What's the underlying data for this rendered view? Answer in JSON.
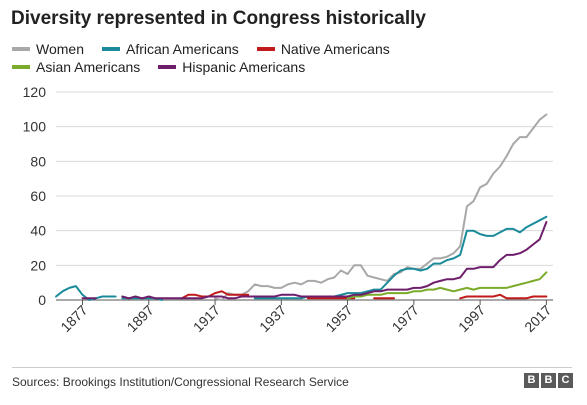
{
  "chart_data": {
    "type": "line",
    "title": "Diversity represented in Congress historically",
    "xlabel": "",
    "ylabel": "",
    "xlim": [
      1869,
      2019
    ],
    "ylim": [
      0,
      120
    ],
    "y_ticks": [
      0,
      20,
      40,
      60,
      80,
      100,
      120
    ],
    "x_ticks": [
      1877,
      1897,
      1917,
      1937,
      1957,
      1977,
      1997,
      2017
    ],
    "grid": "horizontal",
    "legend_position": "top-left",
    "series": [
      {
        "name": "Women",
        "color": "#a8a8a8",
        "segments": [
          {
            "x": [
              1917,
              1919,
              1921,
              1923,
              1925,
              1927,
              1929,
              1931,
              1933,
              1935,
              1937,
              1939,
              1941,
              1943,
              1945,
              1947,
              1949,
              1951,
              1953,
              1955,
              1957,
              1959,
              1961,
              1963,
              1965,
              1967,
              1969,
              1971,
              1973,
              1975,
              1977,
              1979,
              1981,
              1983,
              1985,
              1987,
              1989,
              1991,
              1993,
              1995,
              1997,
              1999,
              2001,
              2003,
              2005,
              2007,
              2009,
              2011,
              2013,
              2015,
              2017
            ],
            "y": [
              1,
              0,
              4,
              3,
              3,
              5,
              9,
              8,
              8,
              7,
              7,
              9,
              10,
              9,
              11,
              11,
              10,
              12,
              13,
              17,
              15,
              20,
              20,
              14,
              13,
              12,
              11,
              15,
              16,
              19,
              18,
              18,
              21,
              24,
              24,
              25,
              27,
              31,
              54,
              57,
              65,
              67,
              73,
              77,
              83,
              90,
              94,
              94,
              99,
              104,
              107
            ]
          }
        ]
      },
      {
        "name": "African Americans",
        "color": "#1b8b9b",
        "segments": [
          {
            "x": [
              1869,
              1871,
              1873,
              1875,
              1877,
              1879,
              1881,
              1883,
              1885,
              1887
            ],
            "y": [
              2,
              5,
              7,
              8,
              3,
              0,
              1,
              2,
              2,
              2
            ]
          },
          {
            "x": [
              1889,
              1891,
              1893,
              1895,
              1897,
              1899,
              1901
            ],
            "y": [
              1,
              1,
              1,
              1,
              1,
              1,
              0
            ]
          },
          {
            "x": [
              1929,
              1931,
              1933,
              1935,
              1937,
              1939,
              1941,
              1943,
              1945,
              1947,
              1949,
              1951,
              1953,
              1955,
              1957,
              1959,
              1961,
              1963,
              1965,
              1967,
              1969,
              1971,
              1973,
              1975,
              1977,
              1979,
              1981,
              1983,
              1985,
              1987,
              1989,
              1991,
              1993,
              1995,
              1997,
              1999,
              2001,
              2003,
              2005,
              2007,
              2009,
              2011,
              2013,
              2015,
              2017
            ],
            "y": [
              1,
              1,
              1,
              1,
              1,
              1,
              1,
              1,
              2,
              2,
              2,
              2,
              2,
              3,
              4,
              4,
              4,
              5,
              6,
              6,
              10,
              14,
              17,
              18,
              18,
              17,
              18,
              21,
              21,
              23,
              24,
              26,
              40,
              40,
              38,
              37,
              37,
              39,
              41,
              41,
              39,
              42,
              44,
              46,
              48
            ]
          }
        ]
      },
      {
        "name": "Native Americans",
        "color": "#c01a1a",
        "segments": [
          {
            "x": [
              1907,
              1909,
              1911,
              1913,
              1915,
              1917,
              1919,
              1921,
              1923,
              1925,
              1927
            ],
            "y": [
              1,
              3,
              3,
              2,
              2,
              4,
              5,
              3,
              3,
              3,
              3
            ]
          },
          {
            "x": [
              1945,
              1947,
              1949,
              1951,
              1953,
              1955,
              1957,
              1959
            ],
            "y": [
              1,
              1,
              1,
              1,
              1,
              1,
              1,
              1
            ]
          },
          {
            "x": [
              1965,
              1967,
              1969,
              1971
            ],
            "y": [
              1,
              1,
              1,
              1
            ]
          },
          {
            "x": [
              1991,
              1993,
              1995,
              1997,
              1999,
              2001,
              2003,
              2005,
              2007,
              2009,
              2011,
              2013,
              2015,
              2017
            ],
            "y": [
              1,
              2,
              2,
              2,
              2,
              2,
              3,
              1,
              1,
              1,
              1,
              2,
              2,
              2
            ]
          }
        ]
      },
      {
        "name": "Asian Americans",
        "color": "#7aab2b",
        "segments": [
          {
            "x": [
              1957,
              1959,
              1961,
              1963,
              1965,
              1967,
              1969,
              1971,
              1973,
              1975,
              1977,
              1979,
              1981,
              1983,
              1985,
              1987,
              1989,
              1991,
              1993,
              1995,
              1997,
              1999,
              2001,
              2003,
              2005,
              2007,
              2009,
              2011,
              2013,
              2015,
              2017
            ],
            "y": [
              1,
              2,
              2,
              3,
              3,
              3,
              4,
              4,
              4,
              4,
              5,
              5,
              6,
              6,
              7,
              6,
              5,
              6,
              7,
              6,
              7,
              7,
              7,
              7,
              7,
              8,
              9,
              10,
              11,
              12,
              16
            ]
          }
        ]
      },
      {
        "name": "Hispanic Americans",
        "color": "#6e1e6b",
        "segments": [
          {
            "x": [
              1877,
              1879,
              1881
            ],
            "y": [
              1,
              1,
              1
            ]
          },
          {
            "x": [
              1889,
              1891,
              1893,
              1895,
              1897,
              1899,
              1901,
              1903,
              1905,
              1907,
              1909,
              1911,
              1913,
              1915,
              1917,
              1919,
              1921,
              1923,
              1925,
              1927,
              1929,
              1931,
              1933,
              1935,
              1937,
              1939,
              1941,
              1943,
              1945,
              1947,
              1949,
              1951,
              1953,
              1955,
              1957,
              1959,
              1961,
              1963,
              1965,
              1967,
              1969,
              1971,
              1973,
              1975,
              1977,
              1979,
              1981,
              1983,
              1985,
              1987,
              1989,
              1991,
              1993,
              1995,
              1997,
              1999,
              2001,
              2003,
              2005,
              2007,
              2009,
              2011,
              2013,
              2015,
              2017
            ],
            "y": [
              2,
              1,
              2,
              1,
              2,
              1,
              1,
              1,
              1,
              1,
              1,
              1,
              1,
              2,
              2,
              2,
              1,
              1,
              2,
              2,
              2,
              2,
              2,
              2,
              3,
              3,
              3,
              2,
              2,
              2,
              2,
              2,
              2,
              2,
              2,
              3,
              3,
              4,
              5,
              5,
              6,
              6,
              6,
              6,
              7,
              7,
              8,
              10,
              11,
              12,
              12,
              13,
              18,
              18,
              19,
              19,
              19,
              23,
              26,
              26,
              27,
              29,
              32,
              35,
              45
            ]
          }
        ]
      }
    ]
  },
  "legend": {
    "row1": [
      {
        "name": "Women",
        "color": "#a8a8a8"
      },
      {
        "name": "African Americans",
        "color": "#1b8b9b"
      },
      {
        "name": "Native Americans",
        "color": "#c01a1a"
      }
    ],
    "row2": [
      {
        "name": "Asian Americans",
        "color": "#7aab2b"
      },
      {
        "name": "Hispanic Americans",
        "color": "#6e1e6b"
      }
    ]
  },
  "footer": {
    "source": "Sources: Brookings Institution/Congressional Research Service",
    "logo_letters": [
      "B",
      "B",
      "C"
    ]
  }
}
